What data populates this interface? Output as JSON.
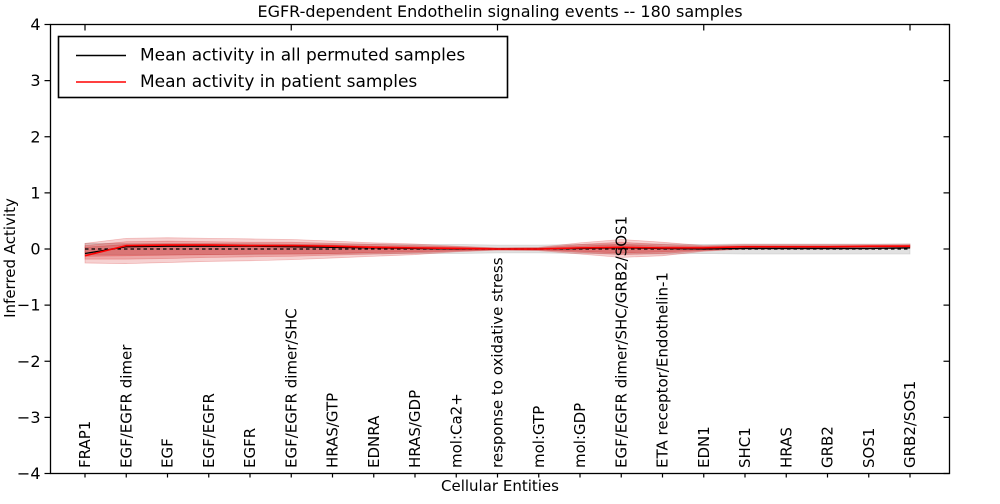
{
  "chart_data": {
    "type": "line",
    "title": "EGFR-dependent Endothelin signaling events -- 180 samples",
    "xlabel": "Cellular Entities",
    "ylabel": "Inferred Activity",
    "ylim": [
      -4,
      4
    ],
    "yticks": [
      4,
      3,
      2,
      1,
      0,
      -1,
      -2,
      -3,
      -4
    ],
    "ytick_labels": [
      "4",
      "3",
      "2",
      "1",
      "0",
      "−1",
      "−2",
      "−3",
      "−4"
    ],
    "grid": false,
    "categories": [
      "FRAP1",
      "EGF/EGFR dimer",
      "EGF",
      "EGF/EGFR",
      "EGFR",
      "EGF/EGFR dimer/SHC",
      "HRAS/GTP",
      "EDNRA",
      "HRAS/GDP",
      "mol:Ca2+",
      "response to oxidative stress",
      "mol:GTP",
      "mol:GDP",
      "EGF/EGFR dimer/SHC/GRB2/SOS1",
      "ETA receptor/Endothelin-1",
      "EDN1",
      "SHC1",
      "HRAS",
      "GRB2",
      "SOS1",
      "GRB2/SOS1"
    ],
    "zero_line": {
      "y": 0,
      "style": "dashed",
      "color": "#000000"
    },
    "legend": {
      "position": "upper left",
      "entries": [
        {
          "label": "Mean activity in all permuted samples",
          "color": "#000000"
        },
        {
          "label": "Mean activity in patient samples",
          "color": "#ff0000"
        }
      ]
    },
    "series": [
      {
        "name": "permuted-sample-range",
        "type": "band",
        "color": "#aaaaaa",
        "opacity": 0.35,
        "upper": [
          0.1,
          0.1,
          0.1,
          0.1,
          0.1,
          0.09,
          0.09,
          0.09,
          0.08,
          0.08,
          0.07,
          0.07,
          0.08,
          0.09,
          0.09,
          0.08,
          0.09,
          0.09,
          0.09,
          0.09,
          0.09
        ],
        "lower": [
          -0.1,
          -0.1,
          -0.1,
          -0.1,
          -0.1,
          -0.09,
          -0.09,
          -0.09,
          -0.08,
          -0.08,
          -0.07,
          -0.07,
          -0.08,
          -0.09,
          -0.09,
          -0.08,
          -0.09,
          -0.09,
          -0.09,
          -0.09,
          -0.09
        ]
      },
      {
        "name": "patient-sample-range-outer",
        "type": "band",
        "color": "#d62d2d",
        "opacity": 0.22,
        "upper": [
          0.1,
          0.19,
          0.2,
          0.19,
          0.18,
          0.17,
          0.14,
          0.11,
          0.09,
          0.05,
          0.02,
          0.03,
          0.11,
          0.17,
          0.12,
          0.06,
          0.08,
          0.08,
          0.08,
          0.08,
          0.09
        ],
        "lower": [
          -0.25,
          -0.26,
          -0.24,
          -0.22,
          -0.21,
          -0.19,
          -0.16,
          -0.13,
          -0.1,
          -0.05,
          -0.02,
          -0.03,
          -0.09,
          -0.15,
          -0.12,
          -0.04,
          0.0,
          0.0,
          0.0,
          0.0,
          0.01
        ]
      },
      {
        "name": "patient-sample-range-mid",
        "type": "band",
        "color": "#d62d2d",
        "opacity": 0.25,
        "upper": [
          0.06,
          0.13,
          0.14,
          0.13,
          0.12,
          0.12,
          0.1,
          0.08,
          0.06,
          0.04,
          0.015,
          0.02,
          0.08,
          0.12,
          0.08,
          0.05,
          0.06,
          0.06,
          0.06,
          0.06,
          0.07
        ],
        "lower": [
          -0.18,
          -0.18,
          -0.17,
          -0.15,
          -0.14,
          -0.13,
          -0.11,
          -0.09,
          -0.07,
          -0.04,
          -0.015,
          -0.02,
          -0.06,
          -0.1,
          -0.08,
          -0.03,
          0.005,
          0.005,
          0.005,
          0.005,
          0.02
        ]
      },
      {
        "name": "patient-sample-range-core",
        "type": "band",
        "color": "#d62d2d",
        "opacity": 0.3,
        "upper": [
          0.03,
          0.08,
          0.09,
          0.09,
          0.08,
          0.08,
          0.07,
          0.05,
          0.04,
          0.03,
          0.01,
          0.015,
          0.05,
          0.08,
          0.05,
          0.04,
          0.05,
          0.05,
          0.05,
          0.05,
          0.06
        ],
        "lower": [
          -0.13,
          -0.12,
          -0.11,
          -0.1,
          -0.09,
          -0.09,
          -0.08,
          -0.06,
          -0.05,
          -0.03,
          -0.01,
          -0.015,
          -0.04,
          -0.07,
          -0.05,
          -0.02,
          0.01,
          0.01,
          0.01,
          0.01,
          0.03
        ]
      },
      {
        "name": "Mean activity in all permuted samples",
        "type": "line",
        "color": "#000000",
        "width": 1.3,
        "values": [
          -0.08,
          0.04,
          0.05,
          0.05,
          0.05,
          0.04,
          0.03,
          0.02,
          0.01,
          0.0,
          0.0,
          0.0,
          0.01,
          0.02,
          0.01,
          0.0,
          0.01,
          0.01,
          0.01,
          0.01,
          0.02
        ]
      },
      {
        "name": "Mean activity in patient samples",
        "type": "line",
        "color": "#ff0000",
        "width": 1.6,
        "values": [
          -0.12,
          0.06,
          0.07,
          0.07,
          0.06,
          0.06,
          0.05,
          0.03,
          0.02,
          0.01,
          0.0,
          0.0,
          0.02,
          0.03,
          0.02,
          0.02,
          0.04,
          0.04,
          0.04,
          0.05,
          0.05
        ]
      }
    ]
  }
}
